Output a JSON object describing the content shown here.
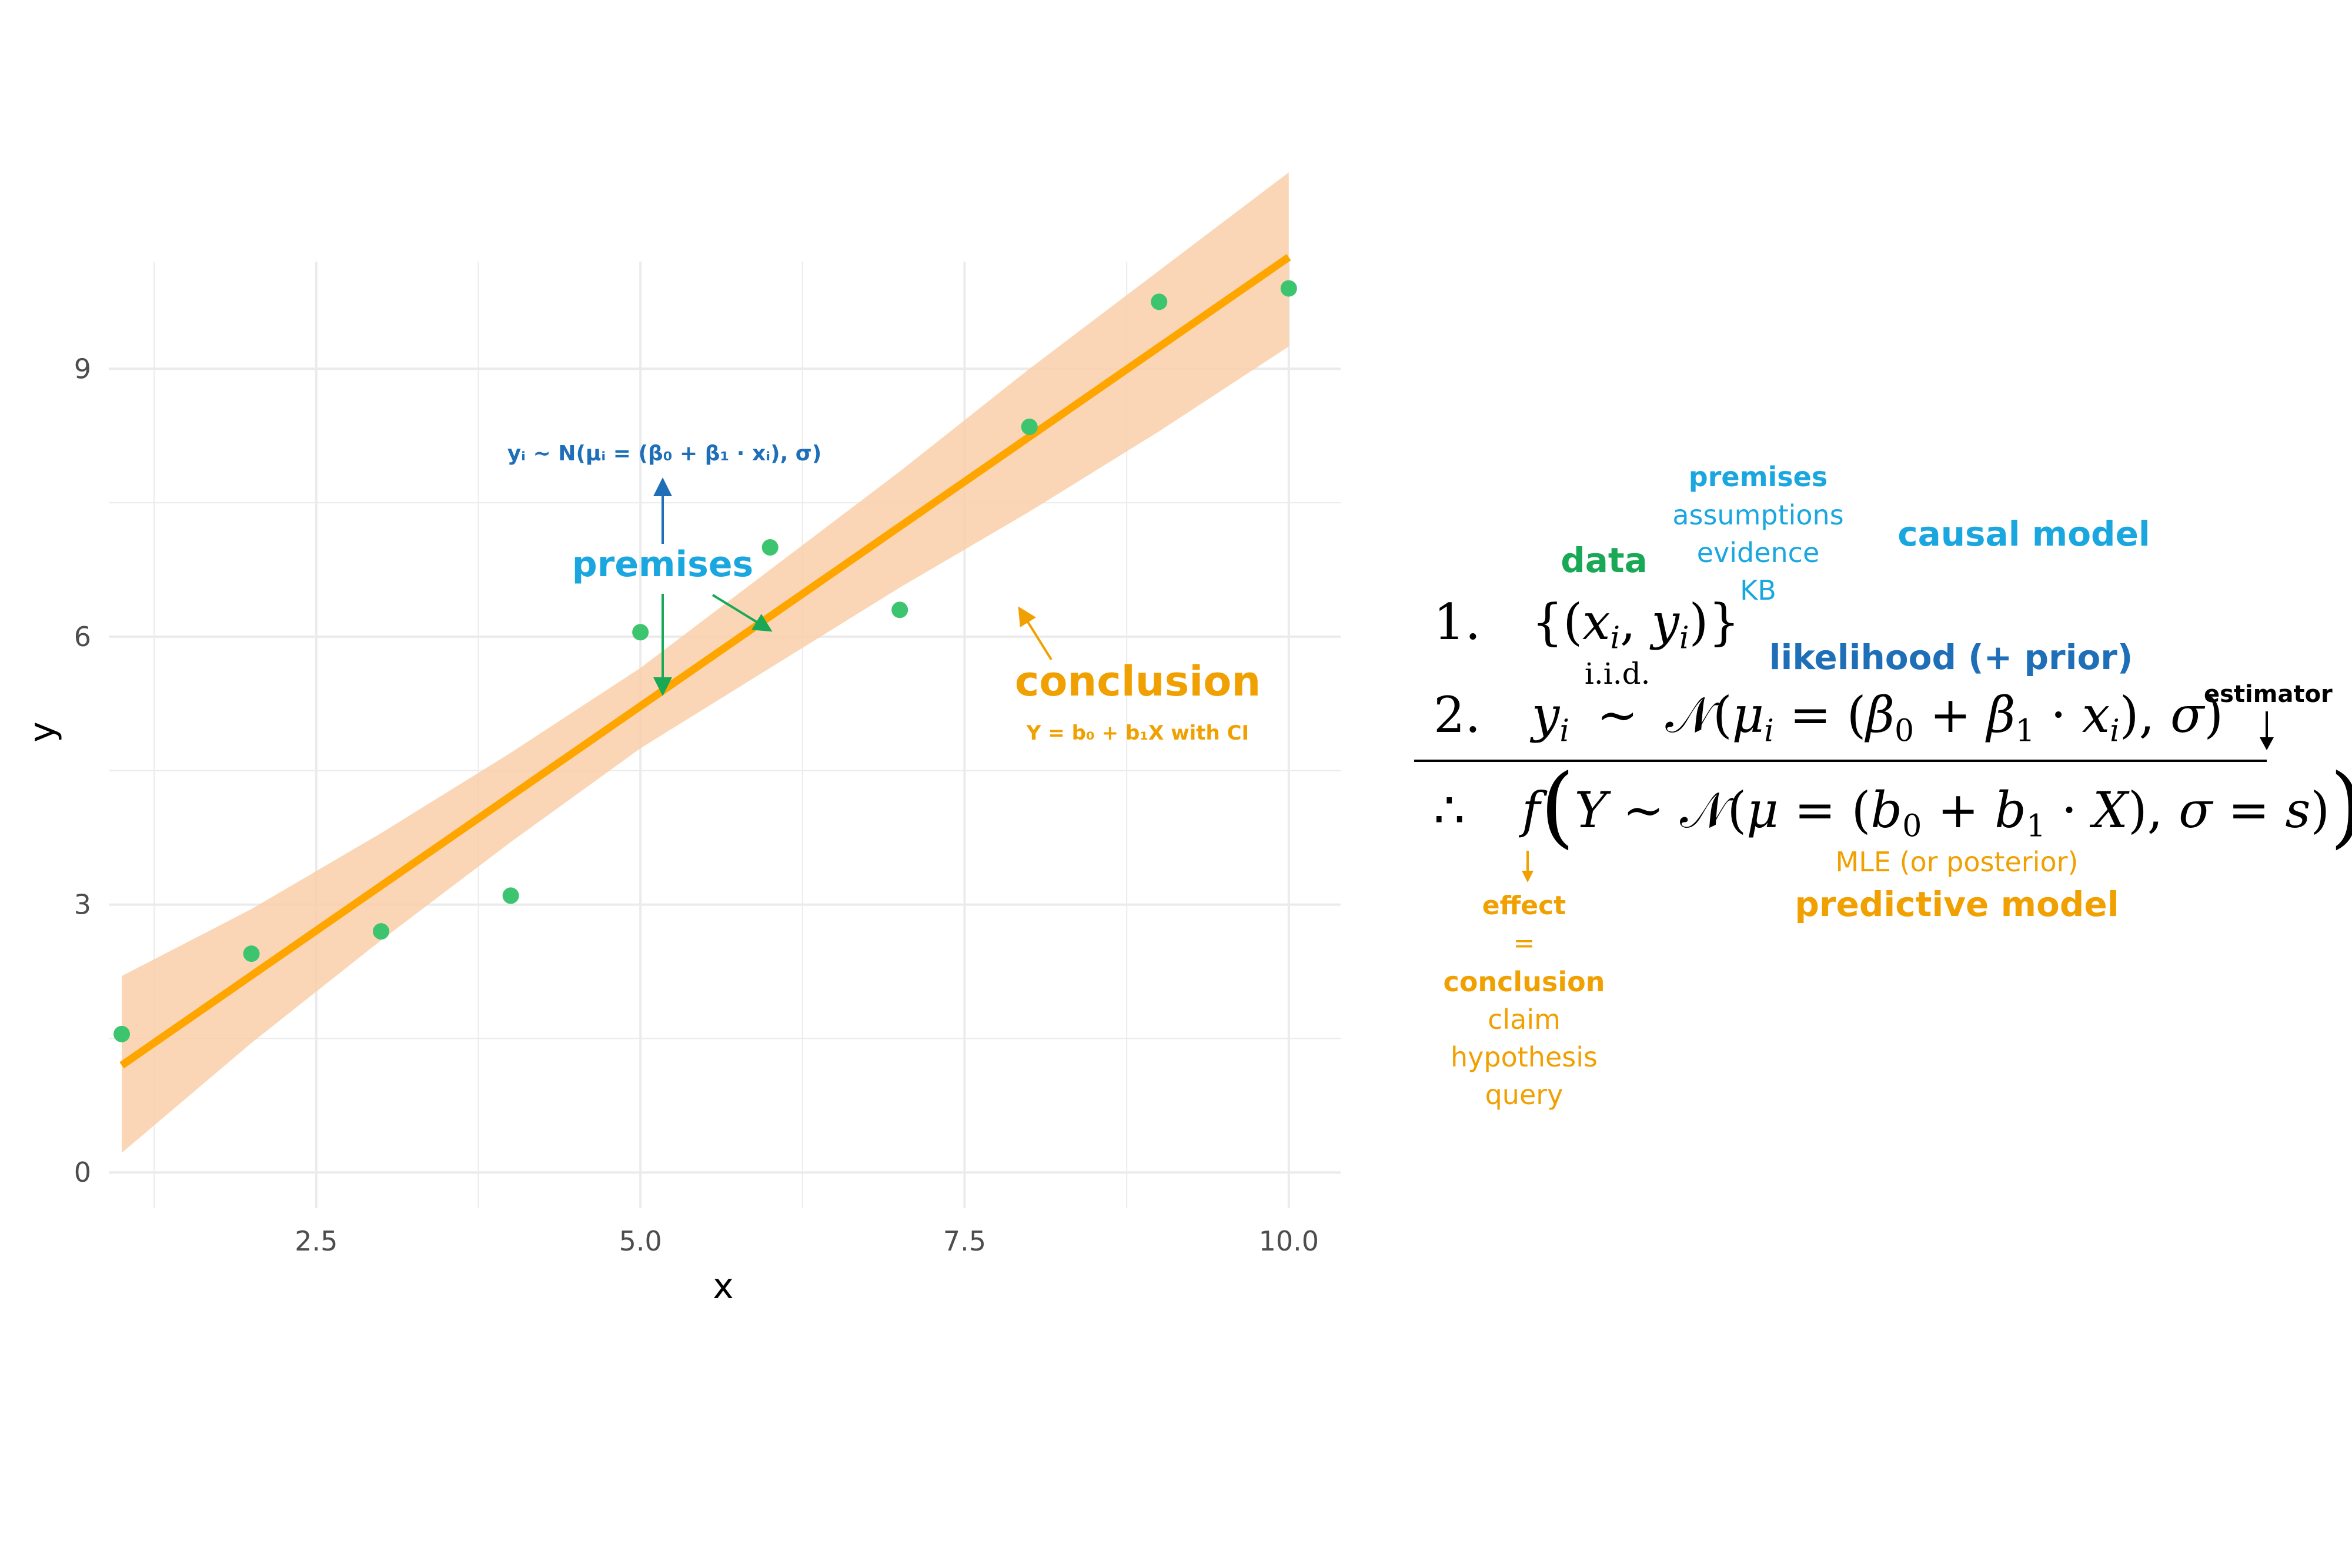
{
  "chart_data": {
    "type": "scatter",
    "xlabel": "x",
    "ylabel": "y",
    "xlim": [
      0.9,
      10.4
    ],
    "ylim": [
      -0.4,
      10.2
    ],
    "xticks": [
      "2.5",
      "5.0",
      "7.5",
      "10.0"
    ],
    "yticks": [
      "0",
      "3",
      "6",
      "9"
    ],
    "grid": true,
    "points": {
      "x": [
        1,
        2,
        3,
        4,
        5,
        6,
        7,
        8,
        9,
        10
      ],
      "y": [
        1.55,
        2.45,
        2.7,
        3.1,
        6.05,
        7.0,
        6.3,
        8.35,
        9.75,
        9.9
      ],
      "color": "#3cc46e"
    },
    "fit_line": {
      "x": [
        1,
        10
      ],
      "y": [
        1.2,
        10.25
      ],
      "color": "#ffa500"
    },
    "confidence_band": {
      "x": [
        1,
        2,
        3,
        4,
        5,
        6,
        7,
        8,
        9,
        10
      ],
      "lower": [
        0.22,
        1.45,
        2.6,
        3.7,
        4.75,
        5.65,
        6.55,
        7.4,
        8.3,
        9.25
      ],
      "upper": [
        2.2,
        2.95,
        3.8,
        4.7,
        5.65,
        6.75,
        7.85,
        9.0,
        10.1,
        11.2
      ],
      "color": "#f9cfa9"
    }
  },
  "annotations": {
    "likelihood_formula": "yᵢ ~ N(μᵢ = (β₀ + β₁ · xᵢ), σ)",
    "premises": "premises",
    "conclusion": "conclusion",
    "conclusion_formula": "Y = b₀ + b₁X with CI"
  },
  "right_panel": {
    "premises_heading": "premises",
    "premises_items": [
      "assumptions",
      "evidence",
      "KB"
    ],
    "causal_model": "causal model",
    "data": "data",
    "likelihood": "likelihood (+ prior)",
    "estimator": "estimator",
    "line1_num": "1.",
    "line2_num": "2.",
    "line3_num": "∴",
    "iid": "i.i.d.",
    "mle": "MLE (or posterior)",
    "predictive_model": "predictive model",
    "effect": "effect",
    "equals": "=",
    "conclusion": "conclusion",
    "conclusion_items": [
      "claim",
      "hypothesis",
      "query"
    ]
  },
  "colors": {
    "green": "#19a855",
    "light_blue": "#1aa7e0",
    "dark_blue": "#1f6fb8",
    "orange": "#f0a000",
    "grid": "#ebebeb"
  }
}
